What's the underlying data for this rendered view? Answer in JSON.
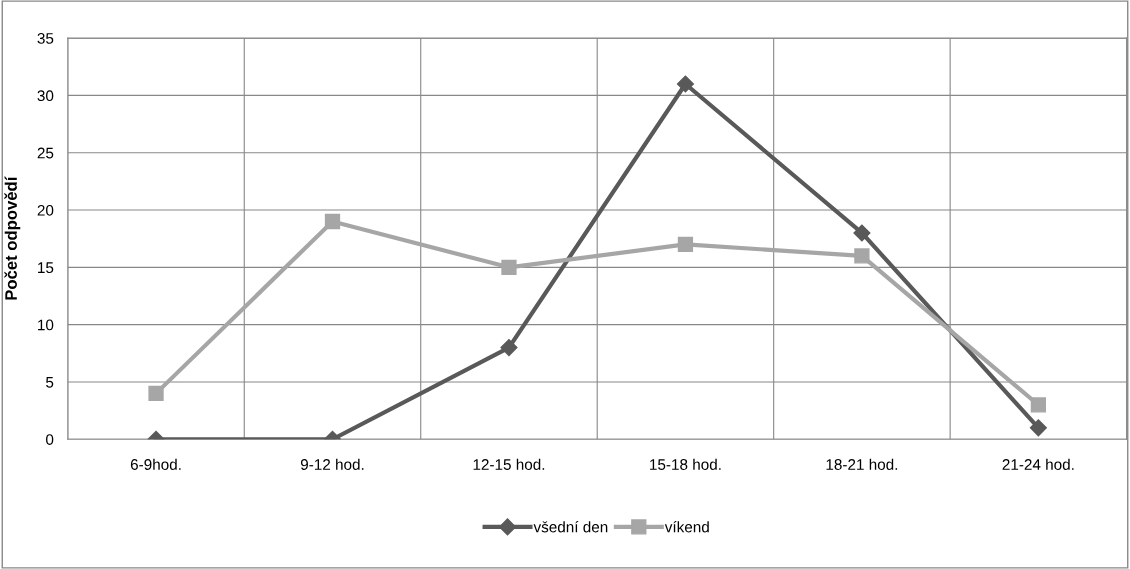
{
  "chart_data": {
    "type": "line",
    "ylabel": "Počet odpovědí",
    "categories": [
      "6-9hod.",
      "9-12 hod.",
      "12-15 hod.",
      "15-18 hod.",
      "18-21 hod.",
      "21-24 hod."
    ],
    "series": [
      {
        "name": "všední den",
        "color": "#595959",
        "values": [
          0,
          0,
          8,
          31,
          18,
          1
        ],
        "marker": "diamond"
      },
      {
        "name": "víkend",
        "color": "#a6a6a6",
        "values": [
          4,
          19,
          15,
          17,
          16,
          3
        ],
        "marker": "square"
      }
    ],
    "ylim": [
      0,
      35
    ],
    "yticks": [
      0,
      5,
      10,
      15,
      20,
      25,
      30,
      35
    ],
    "grid": true,
    "legend": "bottom"
  }
}
